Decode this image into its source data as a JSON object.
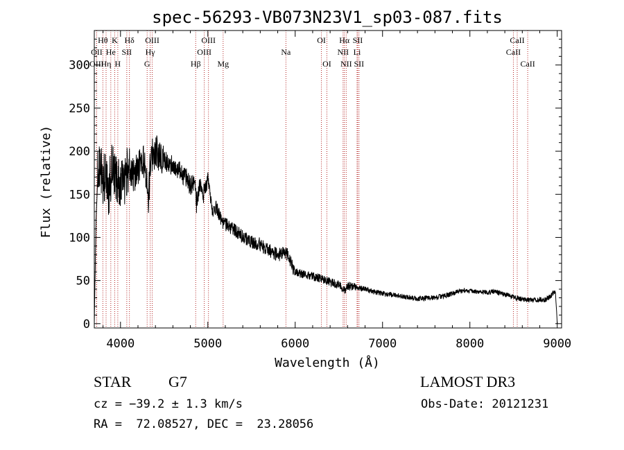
{
  "chart_data": {
    "type": "line",
    "title": "spec-56293-VB073N23V1_sp03-087.fits",
    "xlabel": "Wavelength (Å)",
    "ylabel": "Flux (relative)",
    "xlim": [
      3700,
      9050
    ],
    "ylim": [
      -5,
      340
    ],
    "x_ticks": [
      4000,
      5000,
      6000,
      7000,
      8000,
      9000
    ],
    "y_ticks": [
      0,
      50,
      100,
      150,
      200,
      250,
      300
    ],
    "line_color": "#000000",
    "marker_color": "#b22222",
    "spectrum_anchor_points": {
      "wavelength": [
        3700,
        3720,
        3740,
        3770,
        3800,
        3830,
        3860,
        3900,
        3950,
        4000,
        4050,
        4100,
        4150,
        4200,
        4250,
        4300,
        4320,
        4340,
        4360,
        4400,
        4450,
        4500,
        4550,
        4600,
        4650,
        4700,
        4750,
        4800,
        4850,
        4870,
        4900,
        4950,
        5000,
        5050,
        5100,
        5150,
        5200,
        5300,
        5400,
        5500,
        5600,
        5700,
        5800,
        5900,
        5950,
        6000,
        6100,
        6200,
        6300,
        6400,
        6500,
        6560,
        6600,
        6700,
        6800,
        6900,
        7000,
        7200,
        7400,
        7600,
        7700,
        7800,
        7900,
        8000,
        8100,
        8200,
        8300,
        8400,
        8500,
        8600,
        8700,
        8800,
        8850,
        8900,
        8950,
        8980,
        9000
      ],
      "flux": [
        0,
        120,
        170,
        180,
        165,
        175,
        150,
        180,
        170,
        160,
        165,
        185,
        170,
        180,
        190,
        175,
        140,
        185,
        195,
        200,
        195,
        190,
        185,
        185,
        180,
        175,
        170,
        160,
        165,
        140,
        160,
        150,
        170,
        130,
        135,
        120,
        115,
        110,
        100,
        95,
        92,
        85,
        80,
        82,
        70,
        60,
        57,
        55,
        52,
        48,
        45,
        38,
        44,
        42,
        40,
        37,
        35,
        32,
        29,
        30,
        32,
        35,
        38,
        38,
        37,
        36,
        37,
        34,
        31,
        28,
        27,
        28,
        27,
        30,
        35,
        38,
        0
      ]
    },
    "lines": [
      {
        "label": "Hθ",
        "wavelength": 3798,
        "row": 1
      },
      {
        "label": "OII",
        "wavelength": 3727,
        "row": 2
      },
      {
        "label": "OIII",
        "wavelength": 3727,
        "row": 3
      },
      {
        "label": "He",
        "wavelength": 3889,
        "row": 2
      },
      {
        "label": "Hη",
        "wavelength": 3835,
        "row": 3
      },
      {
        "label": "K",
        "wavelength": 3934,
        "row": 1
      },
      {
        "label": "H",
        "wavelength": 3969,
        "row": 3
      },
      {
        "label": "Hδ",
        "wavelength": 4102,
        "row": 1
      },
      {
        "label": "SII",
        "wavelength": 4072,
        "row": 2
      },
      {
        "label": "OIII",
        "wavelength": 4363,
        "row": 1
      },
      {
        "label": "Hγ",
        "wavelength": 4340,
        "row": 2
      },
      {
        "label": "G",
        "wavelength": 4305,
        "row": 3
      },
      {
        "label": "Hβ",
        "wavelength": 4861,
        "row": 3
      },
      {
        "label": "OIII",
        "wavelength": 5007,
        "row": 1
      },
      {
        "label": "OIII",
        "wavelength": 4959,
        "row": 2
      },
      {
        "label": "Mg",
        "wavelength": 5175,
        "row": 3
      },
      {
        "label": "Na",
        "wavelength": 5894,
        "row": 2
      },
      {
        "label": "OI",
        "wavelength": 6300,
        "row": 1
      },
      {
        "label": "OI",
        "wavelength": 6363,
        "row": 3
      },
      {
        "label": "Hα",
        "wavelength": 6563,
        "row": 1
      },
      {
        "label": "NII",
        "wavelength": 6548,
        "row": 2
      },
      {
        "label": "NII",
        "wavelength": 6584,
        "row": 3
      },
      {
        "label": "SII",
        "wavelength": 6716,
        "row": 1
      },
      {
        "label": "Li",
        "wavelength": 6708,
        "row": 2
      },
      {
        "label": "SII",
        "wavelength": 6731,
        "row": 3
      },
      {
        "label": "CaII",
        "wavelength": 8542,
        "row": 1
      },
      {
        "label": "CaII",
        "wavelength": 8498,
        "row": 2
      },
      {
        "label": "CaII",
        "wavelength": 8662,
        "row": 3
      }
    ]
  },
  "info": {
    "object_class": "STAR",
    "subclass": "G7",
    "survey": "LAMOST DR3",
    "cz_text": "cz = −39.2 ± 1.3 km/s",
    "obs_date_text": "Obs-Date: 20121231",
    "radec_text": "RA =  72.08527, DEC =  23.28056"
  }
}
